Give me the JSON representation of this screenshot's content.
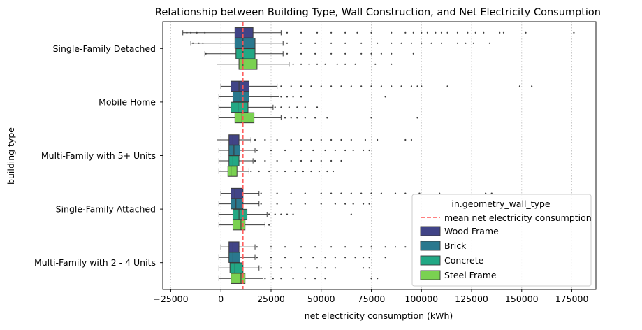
{
  "chart_data": {
    "type": "boxplot",
    "orientation": "horizontal",
    "title": "Relationship between Building Type, Wall Construction, and Net Electricity Consumption",
    "xlabel": "net electricity consumption (kWh)",
    "ylabel": "building type",
    "xlim": [
      -29000,
      187000
    ],
    "x_ticks": [
      -25000,
      0,
      25000,
      50000,
      75000,
      100000,
      125000,
      150000,
      175000
    ],
    "x_tick_labels": [
      "−25000",
      "0",
      "25000",
      "50000",
      "75000",
      "100000",
      "125000",
      "150000",
      "175000"
    ],
    "x_grid": true,
    "grid_style": "dotted",
    "categories": [
      "Single-Family Detached",
      "Mobile Home",
      "Multi-Family with 5+ Units",
      "Single-Family Attached",
      "Multi-Family with 2 - 4 Units"
    ],
    "mean_line": {
      "value": 11000,
      "label": "mean net electricity consumption",
      "color": "#ff5555"
    },
    "legend": {
      "title": "in.geometry_wall_type",
      "position": "lower-right"
    },
    "series": [
      {
        "name": "Wood Frame",
        "color": "#414487",
        "boxes": [
          {
            "whislo": -19000,
            "q1": 7000,
            "median": 10500,
            "q3": 16000,
            "whishi": 30000,
            "fliers": [
              -17000,
              -15000,
              -12000,
              -8000,
              33000,
              40000,
              48000,
              55000,
              62000,
              68000,
              75000,
              85000,
              92000,
              96000,
              100000,
              103000,
              107000,
              110000,
              113000,
              118000,
              123000,
              127000,
              131000,
              139000,
              141000,
              152000,
              176000
            ]
          },
          {
            "whislo": 0,
            "q1": 5000,
            "median": 9000,
            "q3": 14000,
            "whishi": 28000,
            "fliers": [
              30000,
              35000,
              40000,
              45000,
              50000,
              55000,
              60000,
              65000,
              70000,
              75000,
              80000,
              85000,
              90000,
              95000,
              98000,
              100000,
              113000,
              149000,
              155000
            ]
          },
          {
            "whislo": -2000,
            "q1": 4000,
            "median": 6000,
            "q3": 9000,
            "whishi": 15000,
            "fliers": [
              17000,
              22000,
              28000,
              35000,
              40000,
              45000,
              50000,
              55000,
              60000,
              65000,
              72000,
              78000,
              92000,
              95000
            ]
          },
          {
            "whislo": 0,
            "q1": 5000,
            "median": 7000,
            "q3": 11000,
            "whishi": 19000,
            "fliers": [
              20000,
              28000,
              35000,
              42000,
              50000,
              55000,
              60000,
              65000,
              70000,
              75000,
              80000,
              87000,
              92000,
              99000,
              109000,
              132000,
              135000
            ]
          },
          {
            "whislo": 0,
            "q1": 4000,
            "median": 6000,
            "q3": 9000,
            "whishi": 17000,
            "fliers": [
              18000,
              25000,
              32000,
              40000,
              47000,
              55000,
              62000,
              70000,
              75000,
              82000,
              87000,
              92000,
              100000
            ]
          }
        ]
      },
      {
        "name": "Brick",
        "color": "#2a788e",
        "boxes": [
          {
            "whislo": -15000,
            "q1": 7000,
            "median": 11000,
            "q3": 17000,
            "whishi": 31000,
            "fliers": [
              -14000,
              -11000,
              -9000,
              33000,
              40000,
              47000,
              55000,
              62000,
              70000,
              78000,
              85000,
              90000,
              95000,
              100000,
              105000,
              110000,
              118000,
              122000,
              126000,
              134000
            ]
          },
          {
            "whislo": -1000,
            "q1": 6000,
            "median": 9500,
            "q3": 14000,
            "whishi": 29000,
            "fliers": [
              30000,
              33000,
              36000,
              40000,
              82000
            ]
          },
          {
            "whislo": -1000,
            "q1": 4000,
            "median": 6500,
            "q3": 9500,
            "whishi": 17000,
            "fliers": [
              18000,
              25000,
              32000,
              40000,
              46000,
              52000,
              57000,
              62000,
              66000,
              71000,
              74000
            ]
          },
          {
            "whislo": -1000,
            "q1": 5000,
            "median": 7500,
            "q3": 11000,
            "whishi": 19000,
            "fliers": [
              20000,
              28000,
              35000,
              42000,
              50000,
              57000,
              62000,
              66000,
              71000,
              74000
            ]
          },
          {
            "whislo": -1000,
            "q1": 4000,
            "median": 6000,
            "q3": 9500,
            "whishi": 17000,
            "fliers": [
              18000,
              25000,
              32000,
              40000,
              46000,
              52000,
              57000,
              62000,
              67000,
              71000,
              74000,
              82000
            ]
          }
        ]
      },
      {
        "name": "Concrete",
        "color": "#22a884",
        "boxes": [
          {
            "whislo": -8000,
            "q1": 7500,
            "median": 11000,
            "q3": 17000,
            "whishi": 31000,
            "fliers": [
              -7500,
              33000,
              40000,
              47000,
              55000,
              62000,
              70000,
              75000,
              80000,
              85000,
              96000
            ]
          },
          {
            "whislo": -1000,
            "q1": 5000,
            "median": 8500,
            "q3": 13500,
            "whishi": 26000,
            "fliers": [
              27000,
              30000,
              34000,
              38000,
              42000,
              48000
            ]
          },
          {
            "whislo": -1000,
            "q1": 4000,
            "median": 6000,
            "q3": 9000,
            "whishi": 16000,
            "fliers": [
              17000,
              22000,
              28000,
              35000,
              40000,
              45000,
              50000,
              55000,
              60000
            ]
          },
          {
            "whislo": -1000,
            "q1": 6000,
            "median": 9000,
            "q3": 13000,
            "whishi": 23000,
            "fliers": [
              24000,
              27000,
              30000,
              33000,
              36000,
              65000
            ]
          },
          {
            "whislo": -1000,
            "q1": 4500,
            "median": 7000,
            "q3": 11000,
            "whishi": 19000,
            "fliers": [
              20000,
              25000,
              30000,
              35000,
              42000,
              48000,
              52000,
              57000,
              71000,
              74000
            ]
          }
        ]
      },
      {
        "name": "Steel Frame",
        "color": "#7ad151",
        "boxes": [
          {
            "whislo": -2000,
            "q1": 9000,
            "median": 11000,
            "q3": 18000,
            "whishi": 34000,
            "fliers": [
              36000,
              40000,
              44000,
              48000,
              52000,
              58000,
              62000,
              67000,
              77000,
              85000
            ]
          },
          {
            "whislo": -1000,
            "q1": 7000,
            "median": 10500,
            "q3": 16500,
            "whishi": 30000,
            "fliers": [
              32000,
              35000,
              38000,
              42000,
              47000,
              53000,
              75000,
              98000
            ]
          },
          {
            "whislo": -1000,
            "q1": 3500,
            "median": 5000,
            "q3": 8000,
            "whishi": 14000,
            "fliers": [
              15000,
              19000,
              24000,
              28000,
              32000,
              37000,
              41000,
              45000,
              49000,
              53000,
              56000
            ]
          },
          {
            "whislo": -1000,
            "q1": 6000,
            "median": 10000,
            "q3": 12000,
            "whishi": 22000,
            "fliers": [
              24000
            ]
          },
          {
            "whislo": -1000,
            "q1": 5000,
            "median": 10000,
            "q3": 12000,
            "whishi": 21000,
            "fliers": [
              22000,
              26000,
              30000,
              36000,
              42000,
              47000,
              52000,
              75000,
              78000
            ]
          }
        ]
      }
    ]
  }
}
